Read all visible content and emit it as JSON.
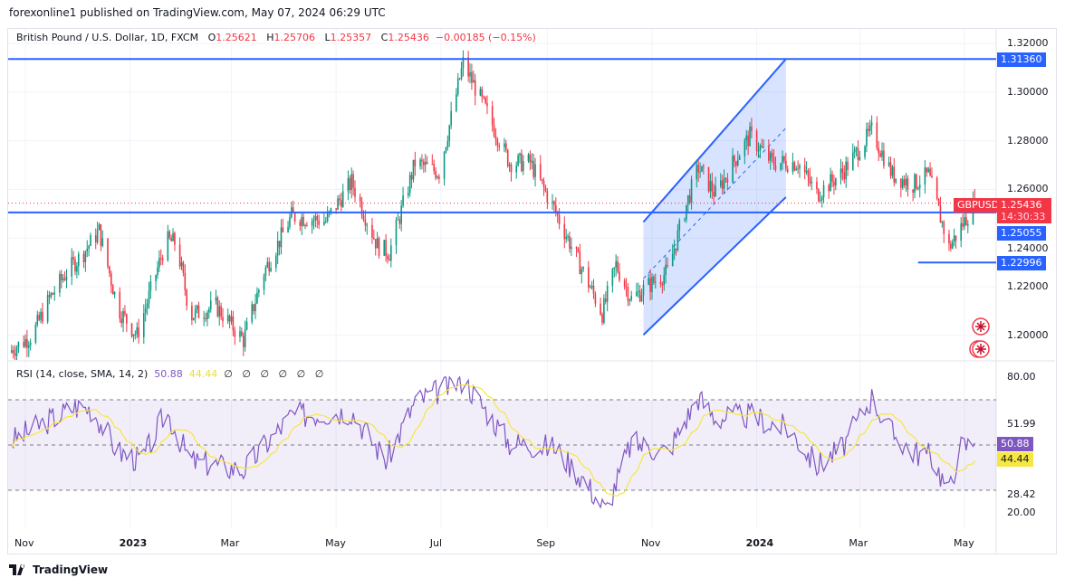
{
  "header": {
    "published": "forexonline1 published on TradingView.com, May 07, 2024 06:29 UTC"
  },
  "legend": {
    "symbol": "British Pound / U.S. Dollar, 1D, FXCM",
    "o_label": "O",
    "o": "1.25621",
    "h_label": "H",
    "h": "1.25706",
    "l_label": "L",
    "l": "1.25357",
    "c_label": "C",
    "c": "1.25436",
    "change": "−0.00185 (−0.15%)"
  },
  "rsi_legend": {
    "title": "RSI (14, close, SMA, 14, 2)",
    "rsi": "50.88",
    "sma": "44.44",
    "empty": [
      "∅",
      "∅",
      "∅",
      "∅",
      "∅",
      "∅"
    ]
  },
  "footer": {
    "brand": "TradingView"
  },
  "colors": {
    "up": "#089981",
    "down": "#f23645",
    "line": "#2962ff",
    "rsi": "#7e57c2",
    "sma": "#f5e642"
  },
  "price_tags": {
    "symbol": "GBPUSD",
    "last": "1.25436",
    "countdown": "14:30:33",
    "level_top": "1.31360",
    "level_mid": "1.25055",
    "level_low": "1.22996"
  },
  "rsi_tags": {
    "rsi": "50.88",
    "sma": "44.44",
    "upper": "51.99",
    "lower": "28.42"
  },
  "chart_data": [
    {
      "type": "candlestick",
      "title": "British Pound / U.S. Dollar, 1D, FXCM",
      "yticks": [
        "1.32000",
        "1.30000",
        "1.28000",
        "1.26000",
        "1.24000",
        "1.22000",
        "1.20000"
      ],
      "ylim": [
        1.19,
        1.325
      ],
      "xticks": [
        [
          "2022-11-01",
          "Nov"
        ],
        [
          "2023-01-01",
          "2023"
        ],
        [
          "2023-03-01",
          "Mar"
        ],
        [
          "2023-05-01",
          "May"
        ],
        [
          "2023-07-01",
          "Jul"
        ],
        [
          "2023-09-01",
          "Sep"
        ],
        [
          "2023-11-01",
          "Nov"
        ],
        [
          "2024-01-01",
          "2024"
        ],
        [
          "2024-03-01",
          "Mar"
        ],
        [
          "2024-05-01",
          "May"
        ]
      ],
      "xlim": [
        "2022-10-22",
        "2024-05-22"
      ],
      "close_path": [
        [
          "2022-10-22",
          1.193
        ],
        [
          "2022-11-05",
          1.2
        ],
        [
          "2022-11-15",
          1.215
        ],
        [
          "2022-11-25",
          1.226
        ],
        [
          "2022-12-05",
          1.234
        ],
        [
          "2022-12-14",
          1.243
        ],
        [
          "2022-12-25",
          1.211
        ],
        [
          "2023-01-05",
          1.2
        ],
        [
          "2023-01-22",
          1.239
        ],
        [
          "2023-01-28",
          1.238
        ],
        [
          "2023-02-05",
          1.208
        ],
        [
          "2023-02-20",
          1.212
        ],
        [
          "2023-03-08",
          1.198
        ],
        [
          "2023-03-20",
          1.226
        ],
        [
          "2023-04-05",
          1.249
        ],
        [
          "2023-04-25",
          1.247
        ],
        [
          "2023-05-10",
          1.263
        ],
        [
          "2023-05-25",
          1.237
        ],
        [
          "2023-06-01",
          1.234
        ],
        [
          "2023-06-16",
          1.271
        ],
        [
          "2023-06-30",
          1.267
        ],
        [
          "2023-07-14",
          1.312
        ],
        [
          "2023-07-27",
          1.293
        ],
        [
          "2023-08-10",
          1.271
        ],
        [
          "2023-08-22",
          1.271
        ],
        [
          "2023-09-05",
          1.252
        ],
        [
          "2023-09-22",
          1.226
        ],
        [
          "2023-10-03",
          1.209
        ],
        [
          "2023-10-11",
          1.229
        ],
        [
          "2023-10-20",
          1.215
        ],
        [
          "2023-10-27",
          1.219
        ],
        [
          "2023-11-10",
          1.226
        ],
        [
          "2023-11-22",
          1.256
        ],
        [
          "2023-11-28",
          1.269
        ],
        [
          "2023-12-08",
          1.258
        ],
        [
          "2023-12-20",
          1.273
        ],
        [
          "2023-12-28",
          1.282
        ],
        [
          "2024-01-10",
          1.271
        ],
        [
          "2024-01-25",
          1.271
        ],
        [
          "2024-02-05",
          1.258
        ],
        [
          "2024-02-20",
          1.267
        ],
        [
          "2024-03-08",
          1.284
        ],
        [
          "2024-03-20",
          1.266
        ],
        [
          "2024-04-01",
          1.262
        ],
        [
          "2024-04-10",
          1.266
        ],
        [
          "2024-04-22",
          1.236
        ],
        [
          "2024-05-07",
          1.25436
        ]
      ],
      "drawings": {
        "hlines": [
          {
            "price": 1.3136,
            "from": "2022-10-22"
          },
          {
            "price": 1.25055,
            "from": "2022-10-22"
          },
          {
            "price": 1.22996,
            "from": "2024-04-04"
          }
        ],
        "channel": {
          "upper": [
            [
              "2023-10-27",
              1.2466
            ],
            [
              "2024-01-18",
              1.3136
            ]
          ],
          "lower": [
            [
              "2023-10-27",
              1.2002
            ],
            [
              "2024-01-18",
              1.2568
            ]
          ]
        }
      }
    },
    {
      "type": "line",
      "title": "RSI (14, close, SMA, 14, 2)",
      "yticks": [
        "80.00",
        "20.00"
      ],
      "ylim": [
        14,
        84
      ],
      "bands": [
        70,
        30
      ],
      "midline": 50,
      "rsi_path": [
        [
          "2022-10-22",
          51
        ],
        [
          "2022-11-10",
          59
        ],
        [
          "2022-11-30",
          67
        ],
        [
          "2022-12-10",
          66
        ],
        [
          "2022-12-25",
          47
        ],
        [
          "2023-01-08",
          43
        ],
        [
          "2023-01-22",
          65
        ],
        [
          "2023-02-05",
          43
        ],
        [
          "2023-03-08",
          39
        ],
        [
          "2023-04-05",
          63
        ],
        [
          "2023-05-10",
          65
        ],
        [
          "2023-05-30",
          43
        ],
        [
          "2023-06-16",
          69
        ],
        [
          "2023-07-14",
          79
        ],
        [
          "2023-08-10",
          51
        ],
        [
          "2023-09-05",
          49
        ],
        [
          "2023-09-22",
          35
        ],
        [
          "2023-10-05",
          21
        ],
        [
          "2023-10-20",
          51
        ],
        [
          "2023-11-10",
          47
        ],
        [
          "2023-11-28",
          71
        ],
        [
          "2023-12-08",
          62
        ],
        [
          "2023-12-28",
          63
        ],
        [
          "2024-01-20",
          57
        ],
        [
          "2024-02-05",
          41
        ],
        [
          "2024-02-20",
          49
        ],
        [
          "2024-03-08",
          71
        ],
        [
          "2024-03-20",
          55
        ],
        [
          "2024-04-01",
          47
        ],
        [
          "2024-04-12",
          45
        ],
        [
          "2024-04-22",
          29
        ],
        [
          "2024-04-28",
          49
        ],
        [
          "2024-05-07",
          50.88
        ]
      ],
      "sma_last": 44.44
    }
  ]
}
